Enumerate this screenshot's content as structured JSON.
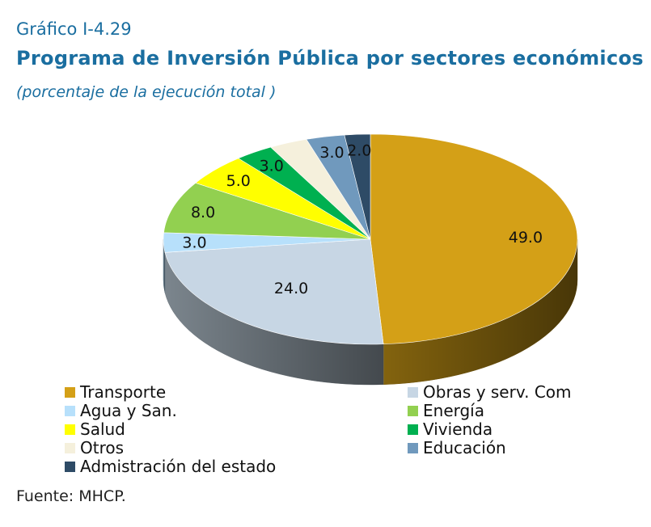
{
  "header": {
    "label": "Gráfico I-4.29",
    "title": "Programa de Inversión Pública por sectores económicos",
    "subtitle": "(porcentaje de la ejecución total )"
  },
  "chart_data": {
    "type": "pie",
    "style": "3d",
    "categories": [
      "Transporte",
      "Obras y serv. Com",
      "Agua y San.",
      "Energía",
      "Salud",
      "Vivienda",
      "Otros",
      "Educación",
      "Admistración del estado"
    ],
    "values": [
      49.0,
      24.0,
      3.0,
      8.0,
      5.0,
      3.0,
      3.0,
      3.0,
      2.0
    ],
    "data_labels": [
      "49.0",
      "24.0",
      "3.0",
      "8.0",
      "5.0",
      "3.0",
      "",
      "3.0",
      "2.0"
    ],
    "colors": [
      "#d4a017",
      "#c7d6e4",
      "#b7e0fb",
      "#92d050",
      "#ffff00",
      "#00b050",
      "#f5f0dc",
      "#7099bd",
      "#2e4b66"
    ],
    "legend": "bottom, two columns",
    "source": "Fuente: MHCP."
  }
}
